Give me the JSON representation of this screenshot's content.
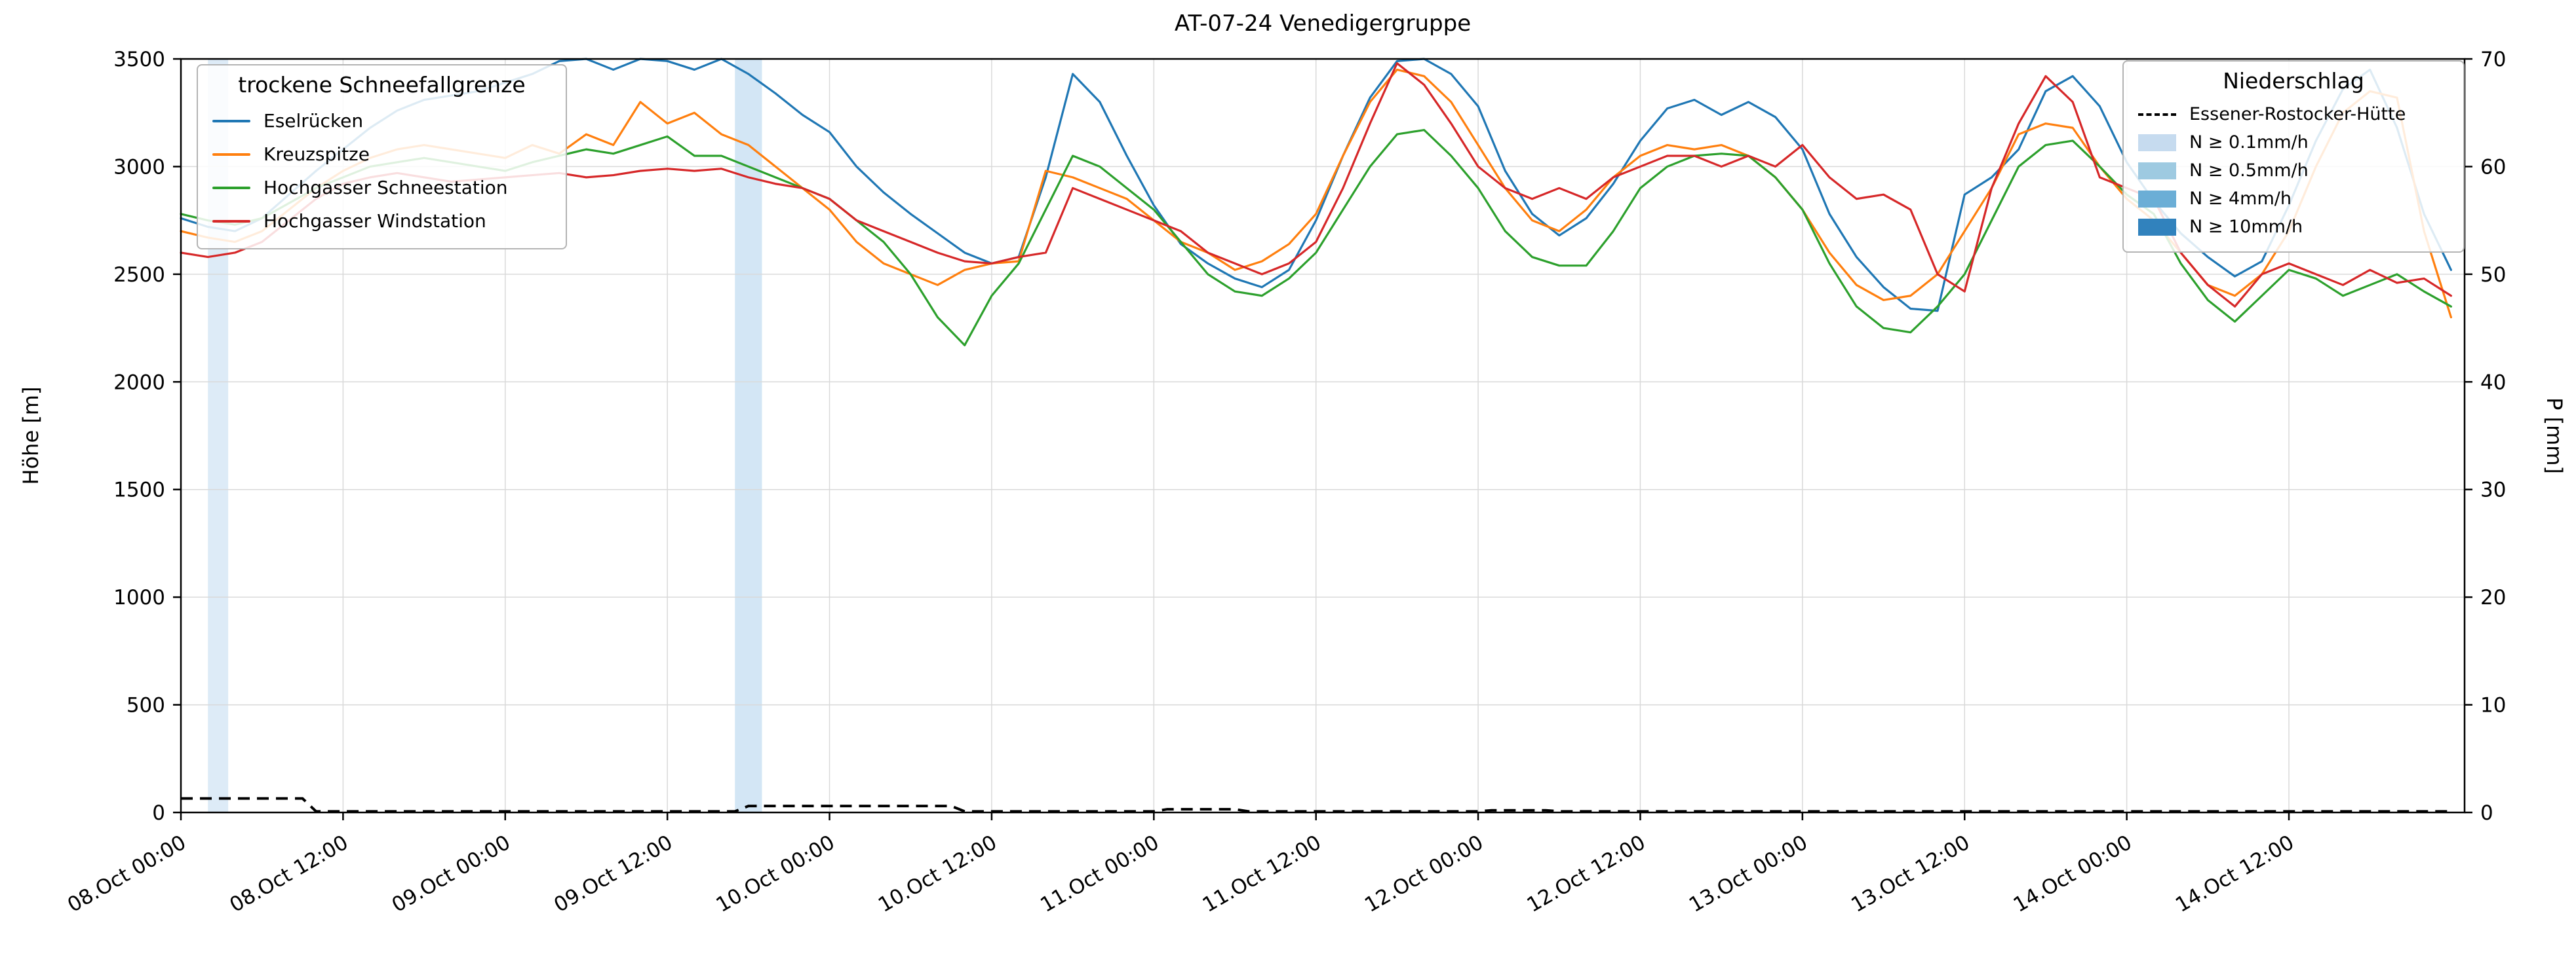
{
  "chart_data": {
    "type": "line",
    "title": "AT-07-24 Venedigergruppe",
    "ylabel_left": "Höhe [m]",
    "ylabel_right": "P [mm]",
    "ylim_left": [
      0,
      3500
    ],
    "ylim_right": [
      0,
      70
    ],
    "ytick_step_left": 500,
    "ytick_step_right": 10,
    "x_hours_max": 169,
    "step_hours": 2,
    "x_ticks": [
      {
        "h": 0,
        "label": "08.Oct 00:00"
      },
      {
        "h": 12,
        "label": "08.Oct 12:00"
      },
      {
        "h": 24,
        "label": "09.Oct 00:00"
      },
      {
        "h": 36,
        "label": "09.Oct 12:00"
      },
      {
        "h": 48,
        "label": "10.Oct 00:00"
      },
      {
        "h": 60,
        "label": "10.Oct 12:00"
      },
      {
        "h": 72,
        "label": "11.Oct 00:00"
      },
      {
        "h": 84,
        "label": "11.Oct 12:00"
      },
      {
        "h": 96,
        "label": "12.Oct 00:00"
      },
      {
        "h": 108,
        "label": "12.Oct 12:00"
      },
      {
        "h": 120,
        "label": "13.Oct 00:00"
      },
      {
        "h": 132,
        "label": "13.Oct 12:00"
      },
      {
        "h": 144,
        "label": "14.Oct 00:00"
      },
      {
        "h": 156,
        "label": "14.Oct 12:00"
      }
    ],
    "series": [
      {
        "name": "Eselrücken",
        "color": "#1f77b4",
        "values": [
          2760,
          2720,
          2700,
          2760,
          2870,
          2980,
          3080,
          3180,
          3260,
          3310,
          3330,
          3350,
          3390,
          3430,
          3490,
          3500,
          3450,
          3500,
          3490,
          3450,
          3500,
          3430,
          3340,
          3240,
          3160,
          3000,
          2880,
          2780,
          2690,
          2600,
          2550,
          2580,
          2950,
          3430,
          3300,
          3050,
          2820,
          2640,
          2550,
          2480,
          2440,
          2520,
          2750,
          3050,
          3320,
          3490,
          3500,
          3430,
          3280,
          2980,
          2780,
          2680,
          2760,
          2920,
          3120,
          3270,
          3310,
          3240,
          3300,
          3230,
          3080,
          2780,
          2580,
          2440,
          2340,
          2330,
          2870,
          2950,
          3080,
          3350,
          3420,
          3280,
          3020,
          2840,
          2690,
          2580,
          2490,
          2560,
          2820,
          3120,
          3360,
          3450,
          3180,
          2780,
          2520
        ]
      },
      {
        "name": "Kreuzspitze",
        "color": "#ff7f0e",
        "values": [
          2700,
          2670,
          2650,
          2700,
          2800,
          2900,
          2980,
          3040,
          3080,
          3100,
          3080,
          3060,
          3040,
          3100,
          3060,
          3150,
          3100,
          3300,
          3200,
          3250,
          3150,
          3100,
          3000,
          2900,
          2800,
          2650,
          2550,
          2500,
          2450,
          2520,
          2550,
          2560,
          2980,
          2950,
          2900,
          2850,
          2750,
          2650,
          2600,
          2520,
          2560,
          2640,
          2780,
          3050,
          3300,
          3450,
          3420,
          3300,
          3100,
          2900,
          2750,
          2700,
          2800,
          2950,
          3050,
          3100,
          3080,
          3100,
          3050,
          2950,
          2800,
          2600,
          2450,
          2380,
          2400,
          2500,
          2700,
          2900,
          3150,
          3200,
          3180,
          3000,
          2850,
          2750,
          2600,
          2450,
          2400,
          2500,
          2700,
          3000,
          3250,
          3350,
          3320,
          2700,
          2300
        ]
      },
      {
        "name": "Hochgasser Schneestation",
        "color": "#2ca02c",
        "values": [
          2780,
          2750,
          2730,
          2760,
          2830,
          2900,
          2950,
          3000,
          3020,
          3040,
          3020,
          3000,
          2980,
          3020,
          3050,
          3080,
          3060,
          3100,
          3140,
          3050,
          3050,
          3000,
          2950,
          2900,
          2850,
          2750,
          2650,
          2500,
          2300,
          2170,
          2400,
          2550,
          2800,
          3050,
          3000,
          2900,
          2800,
          2650,
          2500,
          2420,
          2400,
          2480,
          2600,
          2800,
          3000,
          3150,
          3170,
          3050,
          2900,
          2700,
          2580,
          2540,
          2540,
          2700,
          2900,
          3000,
          3050,
          3060,
          3050,
          2950,
          2800,
          2550,
          2350,
          2250,
          2230,
          2350,
          2500,
          2750,
          3000,
          3100,
          3120,
          3000,
          2870,
          2780,
          2550,
          2380,
          2280,
          2400,
          2520,
          2480,
          2400,
          2450,
          2500,
          2420,
          2350
        ]
      },
      {
        "name": "Hochgasser Windstation",
        "color": "#d62728",
        "values": [
          2600,
          2580,
          2600,
          2650,
          2750,
          2850,
          2920,
          2950,
          2970,
          2950,
          2930,
          2940,
          2950,
          2960,
          2970,
          2950,
          2960,
          2980,
          2990,
          2980,
          2990,
          2950,
          2920,
          2900,
          2850,
          2750,
          2700,
          2650,
          2600,
          2560,
          2550,
          2580,
          2600,
          2900,
          2850,
          2800,
          2750,
          2700,
          2600,
          2550,
          2500,
          2550,
          2650,
          2900,
          3200,
          3480,
          3380,
          3200,
          3000,
          2900,
          2850,
          2900,
          2850,
          2950,
          3000,
          3050,
          3050,
          3000,
          3050,
          3000,
          3100,
          2950,
          2850,
          2870,
          2800,
          2500,
          2420,
          2900,
          3200,
          3420,
          3300,
          2950,
          2900,
          2850,
          2600,
          2450,
          2350,
          2500,
          2550,
          2500,
          2450,
          2520,
          2460,
          2480,
          2400
        ]
      }
    ],
    "precip_line": {
      "name": "Essener-Rostocker-Hütte",
      "color": "#000000",
      "dashed": true,
      "points": [
        [
          0,
          1.3
        ],
        [
          9,
          1.3
        ],
        [
          10,
          0.1
        ],
        [
          41,
          0.1
        ],
        [
          42,
          0.6
        ],
        [
          57,
          0.6
        ],
        [
          58,
          0.1
        ],
        [
          72,
          0.1
        ],
        [
          73,
          0.3
        ],
        [
          78,
          0.3
        ],
        [
          79,
          0.1
        ],
        [
          96,
          0.1
        ],
        [
          97,
          0.2
        ],
        [
          101,
          0.2
        ],
        [
          102,
          0.1
        ],
        [
          168,
          0.1
        ]
      ]
    },
    "precip_spans": {
      "color": "#9ec7e8",
      "spans": [
        {
          "from_h": 2,
          "to_h": 3.5,
          "alpha": 0.35
        },
        {
          "from_h": 41,
          "to_h": 43,
          "alpha": 0.45
        }
      ]
    },
    "legend_left": {
      "title": "trockene Schneefallgrenze"
    },
    "legend_right": {
      "title": "Niederschlag",
      "shade_items": [
        {
          "label": "N ≥ 0.1mm/h",
          "color": "#c6dbef"
        },
        {
          "label": "N ≥ 0.5mm/h",
          "color": "#9ecae1"
        },
        {
          "label": "N ≥ 4mm/h",
          "color": "#6baed6"
        },
        {
          "label": "N ≥ 10mm/h",
          "color": "#3182bd"
        }
      ]
    }
  }
}
